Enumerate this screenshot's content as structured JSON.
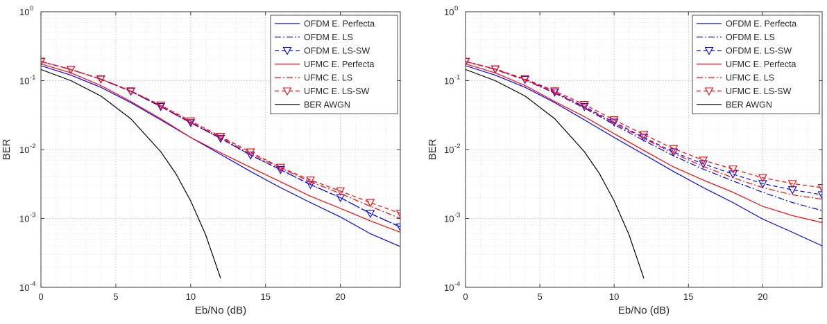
{
  "charts": [
    {
      "type": "line",
      "yscale": "log",
      "xlabel": "Eb/No (dB)",
      "ylabel": "BER",
      "xlim": [
        0,
        24
      ],
      "ylim": [
        0.0001,
        1
      ],
      "xticks": [
        0,
        5,
        10,
        15,
        20
      ],
      "yticks": [
        {
          "value": 1,
          "base": "10",
          "exp": "0"
        },
        {
          "value": 0.1,
          "base": "10",
          "exp": "-1"
        },
        {
          "value": 0.01,
          "base": "10",
          "exp": "-2"
        },
        {
          "value": 0.001,
          "base": "10",
          "exp": "-3"
        },
        {
          "value": 0.0001,
          "base": "10",
          "exp": "-4"
        }
      ],
      "grid": true,
      "minor_grid": true,
      "legend_position": "top-right",
      "series": [
        {
          "name": "OFDM E. Perfecta",
          "color": "#0000ff",
          "dash": "solid",
          "marker": "none",
          "x": [
            0,
            2,
            4,
            6,
            8,
            10,
            12,
            14,
            16,
            18,
            20,
            22,
            24
          ],
          "y": [
            0.165,
            0.12,
            0.08,
            0.048,
            0.027,
            0.015,
            0.0085,
            0.0048,
            0.0028,
            0.0017,
            0.00105,
            0.0006,
            0.00039
          ]
        },
        {
          "name": "OFDM E. LS",
          "color": "#0000ff",
          "dash": "dashdot",
          "marker": "none",
          "x": [
            0,
            2,
            4,
            6,
            8,
            10,
            12,
            14,
            16,
            18,
            20,
            22,
            24
          ],
          "y": [
            0.19,
            0.145,
            0.105,
            0.07,
            0.042,
            0.0245,
            0.0145,
            0.0083,
            0.0051,
            0.0031,
            0.002,
            0.00118,
            0.00075
          ]
        },
        {
          "name": "OFDM E. LS-SW",
          "color": "#0000ff",
          "dash": "dashed",
          "marker": "triangle-down",
          "x": [
            0,
            2,
            4,
            6,
            8,
            10,
            12,
            14,
            16,
            18,
            20,
            22,
            24
          ],
          "y": [
            0.19,
            0.145,
            0.105,
            0.07,
            0.042,
            0.0245,
            0.0145,
            0.0083,
            0.0051,
            0.0031,
            0.002,
            0.00118,
            0.00075
          ]
        },
        {
          "name": "UFMC E. Perfecta",
          "color": "#ff0000",
          "dash": "solid",
          "marker": "none",
          "x": [
            0,
            2,
            4,
            6,
            8,
            10,
            12,
            14,
            16,
            18,
            20,
            22,
            24
          ],
          "y": [
            0.175,
            0.13,
            0.085,
            0.05,
            0.028,
            0.015,
            0.009,
            0.0055,
            0.0034,
            0.0021,
            0.0014,
            0.00092,
            0.00063
          ]
        },
        {
          "name": "UFMC E. LS",
          "color": "#ff0000",
          "dash": "dashdot",
          "marker": "none",
          "x": [
            0,
            2,
            4,
            6,
            8,
            10,
            12,
            14,
            16,
            18,
            20,
            22,
            24
          ],
          "y": [
            0.19,
            0.145,
            0.106,
            0.071,
            0.043,
            0.025,
            0.015,
            0.0087,
            0.0054,
            0.0034,
            0.0023,
            0.0015,
            0.001
          ]
        },
        {
          "name": "UFMC E. LS-SW",
          "color": "#ff0000",
          "dash": "dashed",
          "marker": "triangle-down",
          "x": [
            0,
            2,
            4,
            6,
            8,
            10,
            12,
            14,
            16,
            18,
            20,
            22,
            24
          ],
          "y": [
            0.19,
            0.145,
            0.106,
            0.071,
            0.044,
            0.026,
            0.0155,
            0.0092,
            0.0055,
            0.0036,
            0.0025,
            0.0017,
            0.00118
          ]
        },
        {
          "name": "BER AWGN",
          "color": "#000000",
          "dash": "solid",
          "marker": "none",
          "x": [
            0,
            2,
            4,
            6,
            8,
            9,
            10,
            11,
            12
          ],
          "y": [
            0.145,
            0.1,
            0.06,
            0.028,
            0.0093,
            0.0045,
            0.0018,
            0.00058,
            0.000135
          ]
        }
      ]
    },
    {
      "type": "line",
      "yscale": "log",
      "xlabel": "Eb/No (dB)",
      "ylabel": "BER",
      "xlim": [
        0,
        24
      ],
      "ylim": [
        0.0001,
        1
      ],
      "xticks": [
        0,
        5,
        10,
        15,
        20
      ],
      "yticks": [
        {
          "value": 1,
          "base": "10",
          "exp": "0"
        },
        {
          "value": 0.1,
          "base": "10",
          "exp": "-1"
        },
        {
          "value": 0.01,
          "base": "10",
          "exp": "-2"
        },
        {
          "value": 0.001,
          "base": "10",
          "exp": "-3"
        },
        {
          "value": 0.0001,
          "base": "10",
          "exp": "-4"
        }
      ],
      "grid": true,
      "minor_grid": true,
      "legend_position": "top-right",
      "series": [
        {
          "name": "OFDM E. Perfecta",
          "color": "#0000ff",
          "dash": "solid",
          "marker": "none",
          "x": [
            0,
            2,
            4,
            6,
            8,
            10,
            12,
            14,
            16,
            18,
            20,
            22,
            24
          ],
          "y": [
            0.165,
            0.12,
            0.08,
            0.048,
            0.027,
            0.015,
            0.0085,
            0.0048,
            0.0028,
            0.0017,
            0.00098,
            0.00063,
            0.0004
          ]
        },
        {
          "name": "OFDM E. LS",
          "color": "#0000ff",
          "dash": "dashdot",
          "marker": "none",
          "x": [
            0,
            2,
            4,
            6,
            8,
            10,
            12,
            14,
            16,
            18,
            20,
            22,
            24
          ],
          "y": [
            0.19,
            0.145,
            0.102,
            0.066,
            0.04,
            0.023,
            0.0135,
            0.0081,
            0.0052,
            0.0035,
            0.0024,
            0.0017,
            0.0013
          ]
        },
        {
          "name": "OFDM E. LS-SW",
          "color": "#0000ff",
          "dash": "dashed",
          "marker": "triangle-down",
          "x": [
            0,
            2,
            4,
            6,
            8,
            10,
            12,
            14,
            16,
            18,
            20,
            22,
            24
          ],
          "y": [
            0.19,
            0.147,
            0.104,
            0.068,
            0.042,
            0.025,
            0.015,
            0.0092,
            0.0062,
            0.0044,
            0.0032,
            0.0026,
            0.0022
          ]
        },
        {
          "name": "UFMC E. Perfecta",
          "color": "#ff0000",
          "dash": "solid",
          "marker": "none",
          "x": [
            0,
            2,
            4,
            6,
            8,
            10,
            12,
            14,
            16,
            18,
            20,
            22,
            24
          ],
          "y": [
            0.175,
            0.13,
            0.085,
            0.05,
            0.03,
            0.017,
            0.0097,
            0.0056,
            0.0036,
            0.0024,
            0.0015,
            0.0011,
            0.00087
          ]
        },
        {
          "name": "UFMC E. LS",
          "color": "#ff0000",
          "dash": "dashdot",
          "marker": "none",
          "x": [
            0,
            2,
            4,
            6,
            8,
            10,
            12,
            14,
            16,
            18,
            20,
            22,
            24
          ],
          "y": [
            0.19,
            0.146,
            0.103,
            0.067,
            0.041,
            0.024,
            0.0145,
            0.0088,
            0.0057,
            0.0039,
            0.0028,
            0.0022,
            0.0019
          ]
        },
        {
          "name": "UFMC E. LS-SW",
          "color": "#ff0000",
          "dash": "dashed",
          "marker": "triangle-down",
          "x": [
            0,
            2,
            4,
            6,
            8,
            10,
            12,
            14,
            16,
            18,
            20,
            22,
            24
          ],
          "y": [
            0.19,
            0.148,
            0.106,
            0.071,
            0.045,
            0.027,
            0.0165,
            0.0103,
            0.007,
            0.0052,
            0.0039,
            0.0032,
            0.0028
          ]
        },
        {
          "name": "BER AWGN",
          "color": "#000000",
          "dash": "solid",
          "marker": "none",
          "x": [
            0,
            2,
            4,
            6,
            8,
            9,
            10,
            11,
            12
          ],
          "y": [
            0.145,
            0.1,
            0.06,
            0.028,
            0.0093,
            0.0045,
            0.0018,
            0.00058,
            0.000135
          ]
        }
      ]
    }
  ]
}
